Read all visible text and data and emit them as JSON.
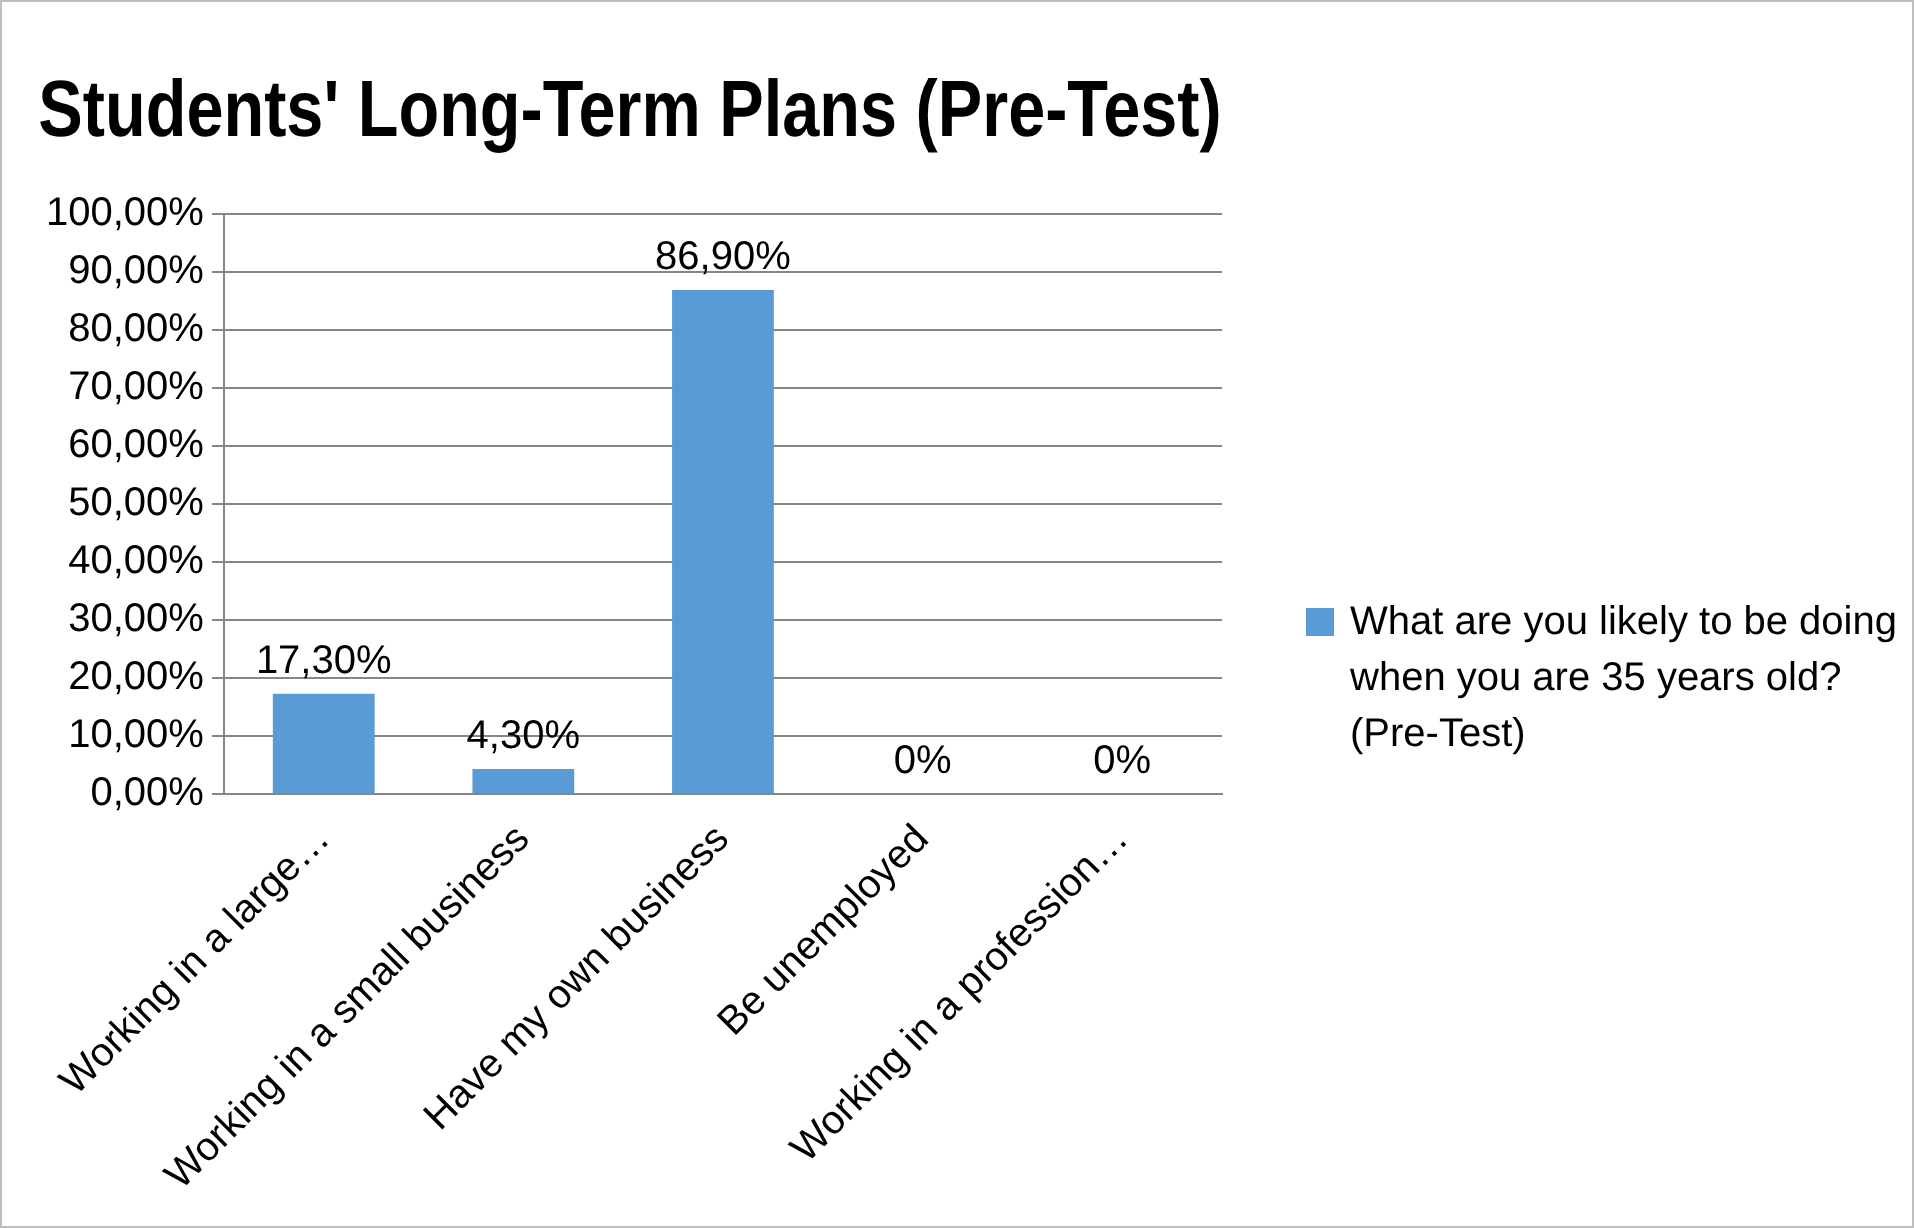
{
  "chart_data": {
    "type": "bar",
    "title": "Students' Long-Term Plans (Pre-Test)",
    "categories": [
      "Working in a large…",
      "Working in a small business",
      "Have my own business",
      "Be unemployed",
      "Working in a profession…"
    ],
    "series": [
      {
        "name": "What are you likely to be doing when you are 35 years old? (Pre-Test)",
        "color": "#5b9bd5",
        "values": [
          17.3,
          4.3,
          86.9,
          0,
          0
        ],
        "value_labels": [
          "17,30%",
          "4,30%",
          "86,90%",
          "0%",
          "0%"
        ]
      }
    ],
    "ylim": [
      0,
      100
    ],
    "yticks": [
      {
        "value": 0,
        "label": "0,00%"
      },
      {
        "value": 10,
        "label": "10,00%"
      },
      {
        "value": 20,
        "label": "20,00%"
      },
      {
        "value": 30,
        "label": "30,00%"
      },
      {
        "value": 40,
        "label": "40,00%"
      },
      {
        "value": 50,
        "label": "50,00%"
      },
      {
        "value": 60,
        "label": "60,00%"
      },
      {
        "value": 70,
        "label": "70,00%"
      },
      {
        "value": 80,
        "label": "80,00%"
      },
      {
        "value": 90,
        "label": "90,00%"
      },
      {
        "value": 100,
        "label": "100,00%"
      }
    ],
    "grid": "y",
    "legend": "right"
  }
}
